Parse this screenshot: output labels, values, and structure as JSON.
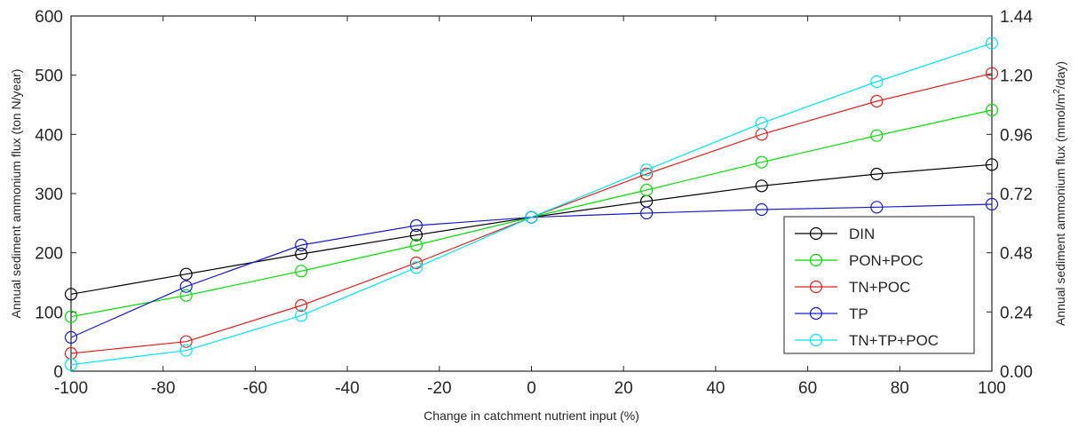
{
  "chart_data": {
    "type": "line",
    "x": [
      -100,
      -75,
      -50,
      -25,
      0,
      25,
      50,
      75,
      100
    ],
    "xlabel": "Change in catchment nutrient input (%)",
    "ylabel_left": "Annual sediment ammonium flux (ton N/year)",
    "ylabel_right_prefix": "Annual sediment ammonium flux (mmol/m",
    "ylabel_right_sup": "2",
    "ylabel_right_suffix": "/day)",
    "xlim": [
      -100,
      100
    ],
    "ylim_left": [
      0,
      600
    ],
    "ylim_right": [
      0,
      1.44
    ],
    "x_ticks": [
      "-100",
      "-80",
      "-60",
      "-40",
      "-20",
      "0",
      "20",
      "40",
      "60",
      "80",
      "100"
    ],
    "y_ticks_left": [
      "0",
      "100",
      "200",
      "300",
      "400",
      "500",
      "600"
    ],
    "y_ticks_right": [
      "0.00",
      "0.24",
      "0.48",
      "0.72",
      "0.96",
      "1.20",
      "1.44"
    ],
    "grid": false,
    "legend_position": "bottom-right",
    "series": [
      {
        "name": "DIN",
        "color": "#000000",
        "values": [
          130,
          164,
          198,
          230,
          260,
          287,
          313,
          333,
          349
        ]
      },
      {
        "name": "PON+POC",
        "color": "#00dd00",
        "values": [
          92,
          128,
          169,
          213,
          260,
          306,
          353,
          398,
          441
        ]
      },
      {
        "name": "TN+POC",
        "color": "#e02020",
        "values": [
          30,
          50,
          111,
          183,
          260,
          333,
          400,
          456,
          503
        ]
      },
      {
        "name": "TP",
        "color": "#1a1ad0",
        "values": [
          57,
          143,
          213,
          246,
          260,
          267,
          273,
          277,
          282
        ]
      },
      {
        "name": "TN+TP+POC",
        "color": "#00e5ee",
        "values": [
          11,
          35,
          94,
          175,
          260,
          340,
          419,
          489,
          554
        ]
      }
    ]
  }
}
